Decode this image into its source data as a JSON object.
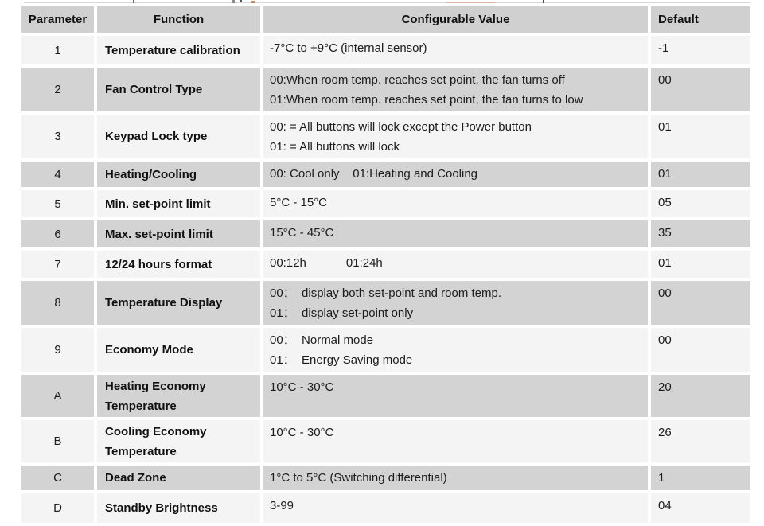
{
  "table": {
    "headers": {
      "parameter": "Parameter",
      "function": "Function",
      "value": "Configurable Value",
      "default": "Default"
    },
    "rows": [
      {
        "parameter": "1",
        "function": "Temperature calibration",
        "value": [
          "-7°C to +9°C (internal sensor)"
        ],
        "default": "-1"
      },
      {
        "parameter": "2",
        "function": "Fan Control Type",
        "value": [
          "00:When room temp. reaches set point, the fan turns off",
          "01:When room temp. reaches set point, the fan turns to low"
        ],
        "default": "00"
      },
      {
        "parameter": "3",
        "function": "Keypad Lock type",
        "value": [
          "00: = All buttons will lock except the Power button",
          "01: = All buttons will lock"
        ],
        "default": "01"
      },
      {
        "parameter": "4",
        "function": "Heating/Cooling",
        "value": [
          "00: Cool only    01:Heating and Cooling"
        ],
        "default": "01"
      },
      {
        "parameter": "5",
        "function": "Min. set-point limit",
        "value": [
          "5°C - 15°C"
        ],
        "default": "05"
      },
      {
        "parameter": "6",
        "function": "Max. set-point limit",
        "value": [
          "15°C - 45°C"
        ],
        "default": "35"
      },
      {
        "parameter": "7",
        "function": "12/24 hours format",
        "value": [
          "00:12h            01:24h"
        ],
        "default": "01"
      },
      {
        "parameter": "8",
        "function": "Temperature Display",
        "value": [
          "00：  display both set-point and room temp.",
          "01：  display set-point only"
        ],
        "default": "00"
      },
      {
        "parameter": "9",
        "function": "Economy Mode",
        "value": [
          "00：  Normal mode",
          "01：  Energy Saving mode"
        ],
        "default": "00"
      },
      {
        "parameter": "A",
        "function": "Heating Economy Temperature",
        "value": [
          "10°C - 30°C"
        ],
        "default": "20"
      },
      {
        "parameter": "B",
        "function": "Cooling Economy Temperature",
        "value": [
          "10°C - 30°C"
        ],
        "default": "26"
      },
      {
        "parameter": "C",
        "function": "Dead Zone",
        "value": [
          "1°C to 5°C (Switching differential)"
        ],
        "default": "1"
      },
      {
        "parameter": "D",
        "function": "Standby Brightness",
        "value": [
          "3-99"
        ],
        "default": "04"
      }
    ]
  },
  "colors": {
    "row_shaded": "#d3d3d3",
    "row_plain": "#f4f4f4",
    "header_fill": "#d0d0d0",
    "text": "#1c1c1c"
  }
}
